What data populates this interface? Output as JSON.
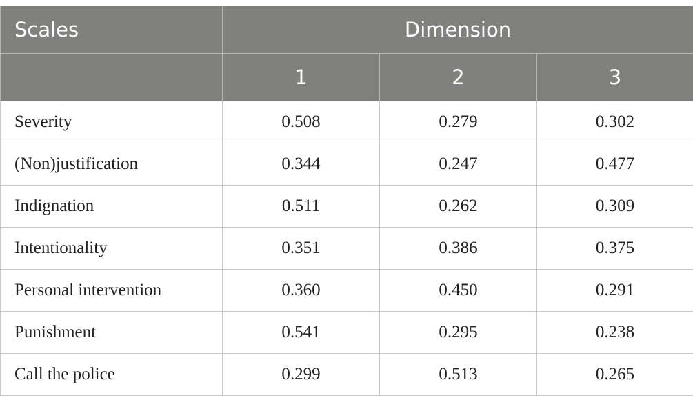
{
  "table": {
    "header": {
      "scales": "Scales",
      "dimension": "Dimension",
      "columns": [
        "1",
        "2",
        "3"
      ]
    },
    "rows": [
      [
        "Severity",
        "0.508",
        "0.279",
        "0.302"
      ],
      [
        "(Non)justification",
        "0.344",
        "0.247",
        "0.477"
      ],
      [
        "Indignation",
        "0.511",
        "0.262",
        "0.309"
      ],
      [
        "Intentionality",
        "0.351",
        "0.386",
        "0.375"
      ],
      [
        "Personal intervention",
        "0.360",
        "0.450",
        "0.291"
      ],
      [
        "Punishment",
        "0.541",
        "0.295",
        "0.238"
      ],
      [
        "Call the police",
        "0.299",
        "0.513",
        "0.265"
      ]
    ]
  }
}
